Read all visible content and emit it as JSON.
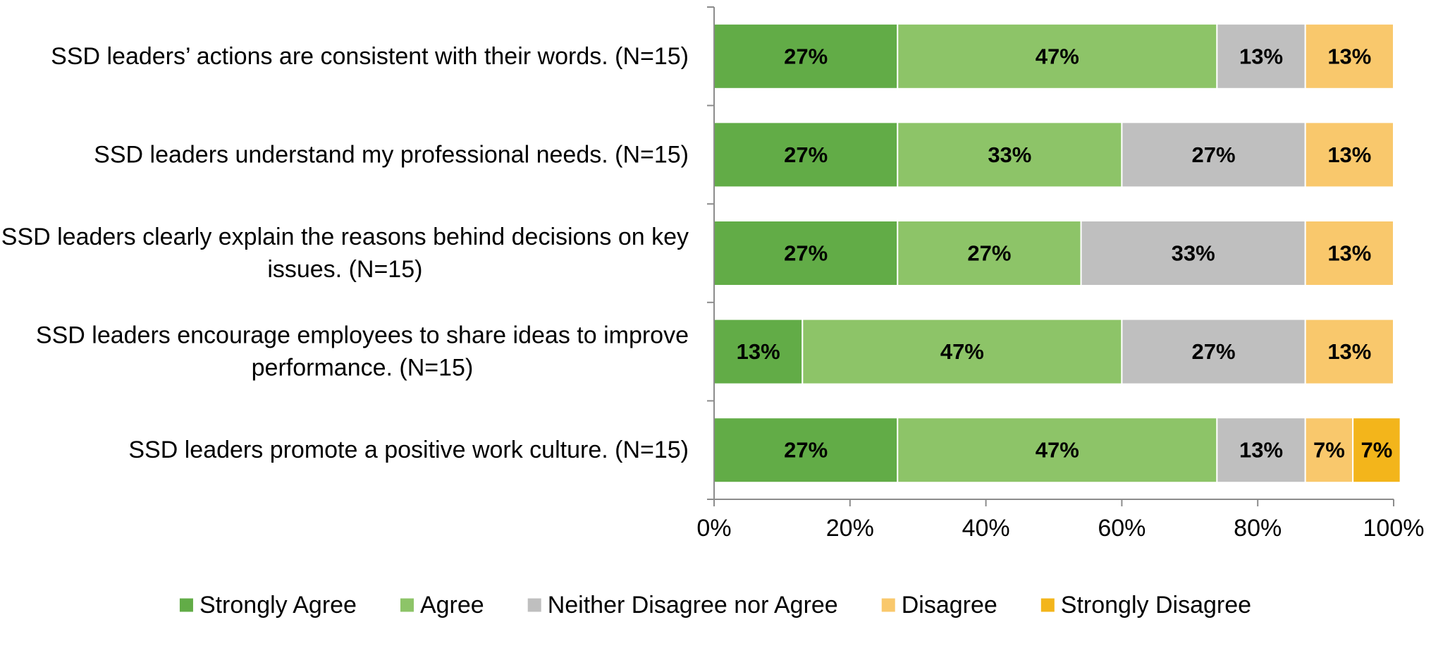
{
  "chart_data": {
    "type": "bar",
    "orientation": "horizontal",
    "stacked": true,
    "categories": [
      "SSD leaders’ actions are consistent with their words. (N=15)",
      "SSD leaders understand my professional needs. (N=15)",
      "SSD leaders clearly explain the reasons behind decisions on key issues. (N=15)",
      "SSD leaders encourage employees to share ideas to improve performance. (N=15)",
      "SSD leaders promote a positive work culture. (N=15)"
    ],
    "series": [
      {
        "name": "Strongly Agree",
        "color": "#62AC47",
        "values": [
          27,
          27,
          27,
          13,
          27
        ],
        "labels": [
          "27%",
          "27%",
          "27%",
          "13%",
          "27%"
        ]
      },
      {
        "name": "Agree",
        "color": "#8DC468",
        "values": [
          47,
          33,
          27,
          47,
          47
        ],
        "labels": [
          "47%",
          "33%",
          "27%",
          "47%",
          "47%"
        ]
      },
      {
        "name": "Neither Disagree nor Agree",
        "color": "#BFBFBF",
        "values": [
          13,
          27,
          33,
          27,
          13
        ],
        "labels": [
          "13%",
          "27%",
          "33%",
          "27%",
          "13%"
        ]
      },
      {
        "name": "Disagree",
        "color": "#F9C86C",
        "values": [
          13,
          13,
          13,
          13,
          7
        ],
        "labels": [
          "13%",
          "13%",
          "13%",
          "13%",
          "7%"
        ]
      },
      {
        "name": "Strongly Disagree",
        "color": "#F3B51B",
        "values": [
          0,
          0,
          0,
          0,
          7
        ],
        "labels": [
          "",
          "",
          "",
          "",
          "7%"
        ]
      }
    ],
    "xlim": [
      0,
      100
    ],
    "xticks": [
      0,
      20,
      40,
      60,
      80,
      100
    ],
    "xtick_labels": [
      "0%",
      "20%",
      "40%",
      "60%",
      "80%",
      "100%"
    ],
    "grid": false,
    "legend_position": "bottom"
  }
}
